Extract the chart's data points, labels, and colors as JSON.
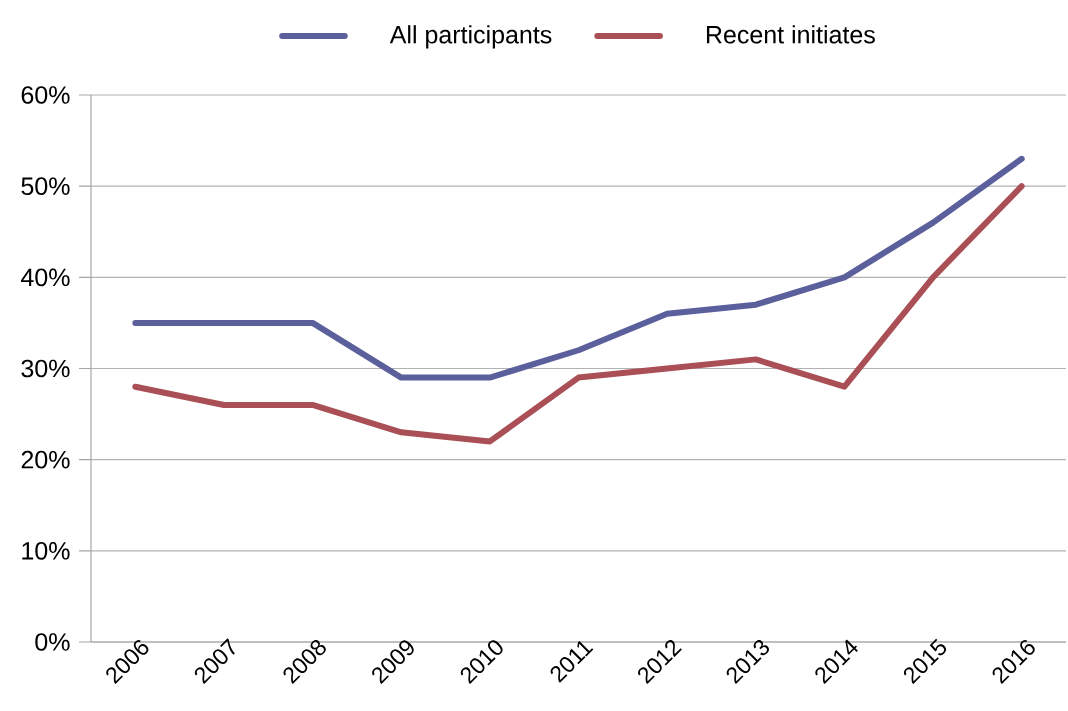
{
  "chart_data": {
    "type": "line",
    "categories": [
      "2006",
      "2007",
      "2008",
      "2009",
      "2010",
      "2011",
      "2012",
      "2013",
      "2014",
      "2015",
      "2016"
    ],
    "series": [
      {
        "name": "All participants",
        "color": "#5b5f9c",
        "values": [
          35,
          35,
          35,
          29,
          29,
          32,
          36,
          37,
          40,
          46,
          53
        ]
      },
      {
        "name": "Recent initiates",
        "color": "#a94f55",
        "values": [
          28,
          26,
          26,
          23,
          22,
          29,
          30,
          31,
          28,
          40,
          50
        ]
      }
    ],
    "ylim": [
      0,
      60
    ],
    "yticks": [
      {
        "value": 0,
        "label": "0%"
      },
      {
        "value": 10,
        "label": "10%"
      },
      {
        "value": 20,
        "label": "20%"
      },
      {
        "value": 30,
        "label": "30%"
      },
      {
        "value": 40,
        "label": "40%"
      },
      {
        "value": 50,
        "label": "50%"
      },
      {
        "value": 60,
        "label": "60%"
      }
    ],
    "grid": "y",
    "legend": "top"
  }
}
